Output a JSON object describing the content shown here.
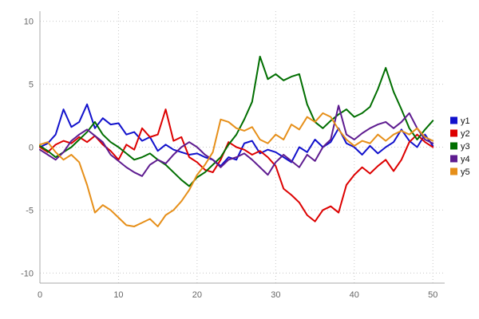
{
  "chart": {
    "background": "#ffffff",
    "grid_color": "#c8c8c8",
    "axis_color": "#aaaaaa",
    "tick_color": "#666666",
    "line_width": 2,
    "legend_position": "right"
  },
  "chart_data": {
    "type": "line",
    "title": "",
    "xlabel": "",
    "ylabel": "",
    "grid": "dotted",
    "legend_position": "right",
    "xlim": [
      0,
      51.5
    ],
    "ylim": [
      -10.8,
      10.8
    ],
    "x_ticks": [
      "0",
      "10",
      "20",
      "30",
      "40",
      "50"
    ],
    "x_tick_values": [
      0,
      10,
      20,
      30,
      40,
      50
    ],
    "y_ticks": [
      "-10",
      "-5",
      "0",
      "5",
      "10"
    ],
    "y_tick_values": [
      -10,
      -5,
      0,
      5,
      10
    ],
    "x": [
      0,
      1,
      2,
      3,
      4,
      5,
      6,
      7,
      8,
      9,
      10,
      11,
      12,
      13,
      14,
      15,
      16,
      17,
      18,
      19,
      20,
      21,
      22,
      23,
      24,
      25,
      26,
      27,
      28,
      29,
      30,
      31,
      32,
      33,
      34,
      35,
      36,
      37,
      38,
      39,
      40,
      41,
      42,
      43,
      44,
      45,
      46,
      47,
      48,
      49,
      50
    ],
    "series": [
      {
        "name": "y1",
        "color": "#1111cc",
        "values": [
          0.0,
          0.3,
          1.0,
          3.0,
          1.6,
          2.0,
          3.4,
          1.5,
          2.3,
          1.8,
          1.9,
          1.0,
          1.2,
          0.5,
          0.8,
          -0.3,
          0.2,
          -0.2,
          -0.4,
          -0.6,
          -0.5,
          -0.8,
          -1.0,
          -1.5,
          -0.8,
          -1.0,
          0.3,
          0.5,
          -0.5,
          -0.2,
          -0.4,
          -0.8,
          -1.2,
          0.0,
          -0.4,
          0.6,
          0.0,
          0.4,
          1.5,
          0.3,
          0.0,
          -0.6,
          0.1,
          -0.5,
          0.0,
          0.4,
          1.4,
          0.5,
          0.0,
          1.0,
          0.1
        ]
      },
      {
        "name": "y2",
        "color": "#dd0000",
        "values": [
          0.0,
          -0.4,
          0.2,
          0.5,
          0.3,
          0.8,
          0.4,
          0.9,
          0.2,
          -0.3,
          -1.0,
          0.2,
          -0.2,
          1.5,
          0.8,
          1.0,
          3.0,
          0.5,
          0.8,
          -0.8,
          -1.2,
          -1.8,
          -2.0,
          -1.0,
          0.4,
          0.0,
          -0.2,
          -0.6,
          -0.3,
          -0.8,
          -1.5,
          -3.3,
          -3.8,
          -4.4,
          -5.4,
          -5.9,
          -5.0,
          -4.7,
          -5.2,
          -3.0,
          -2.2,
          -1.6,
          -2.1,
          -1.5,
          -1.0,
          -1.9,
          -1.0,
          0.4,
          1.0,
          0.4,
          0.0
        ]
      },
      {
        "name": "y3",
        "color": "#006e00",
        "values": [
          0.1,
          -0.3,
          -0.8,
          -0.4,
          0.0,
          0.6,
          1.2,
          2.0,
          1.0,
          0.4,
          0.0,
          -0.5,
          -1.0,
          -0.8,
          -0.5,
          -1.0,
          -1.4,
          -2.0,
          -2.6,
          -3.1,
          -2.4,
          -2.0,
          -1.4,
          -0.8,
          0.2,
          1.0,
          2.2,
          3.6,
          7.2,
          5.4,
          5.8,
          5.3,
          5.6,
          5.8,
          3.4,
          2.0,
          1.5,
          2.1,
          2.6,
          3.0,
          2.4,
          2.7,
          3.2,
          4.6,
          6.3,
          4.4,
          3.0,
          1.5,
          0.6,
          1.4,
          2.1
        ]
      },
      {
        "name": "y4",
        "color": "#5e1c90",
        "values": [
          -0.2,
          -0.6,
          -1.0,
          -0.4,
          0.5,
          1.0,
          1.4,
          0.9,
          0.4,
          -0.6,
          -1.1,
          -1.6,
          -2.0,
          -2.3,
          -1.4,
          -1.0,
          -1.3,
          -0.6,
          0.0,
          0.4,
          0.0,
          -0.6,
          -1.0,
          -1.6,
          -1.0,
          -0.8,
          -0.5,
          -1.0,
          -1.6,
          -2.2,
          -1.2,
          -0.6,
          -1.1,
          -1.6,
          -0.6,
          -1.1,
          0.0,
          0.6,
          3.3,
          1.0,
          0.6,
          1.1,
          1.5,
          1.8,
          2.0,
          1.5,
          2.0,
          2.7,
          1.5,
          0.6,
          0.3
        ]
      },
      {
        "name": "y5",
        "color": "#e68f19",
        "values": [
          0.2,
          0.4,
          -0.4,
          -1.0,
          -0.6,
          -1.2,
          -3.0,
          -5.2,
          -4.6,
          -5.0,
          -5.6,
          -6.2,
          -6.3,
          -6.0,
          -5.7,
          -6.3,
          -5.4,
          -5.0,
          -4.3,
          -3.4,
          -2.2,
          -1.4,
          -0.4,
          2.2,
          2.0,
          1.5,
          1.3,
          1.6,
          0.6,
          0.3,
          1.0,
          0.6,
          1.8,
          1.4,
          2.4,
          2.0,
          2.7,
          2.4,
          1.4,
          0.6,
          0.1,
          0.5,
          0.3,
          1.0,
          0.5,
          1.0,
          1.3,
          1.0,
          1.5,
          0.8,
          0.5
        ]
      }
    ]
  }
}
